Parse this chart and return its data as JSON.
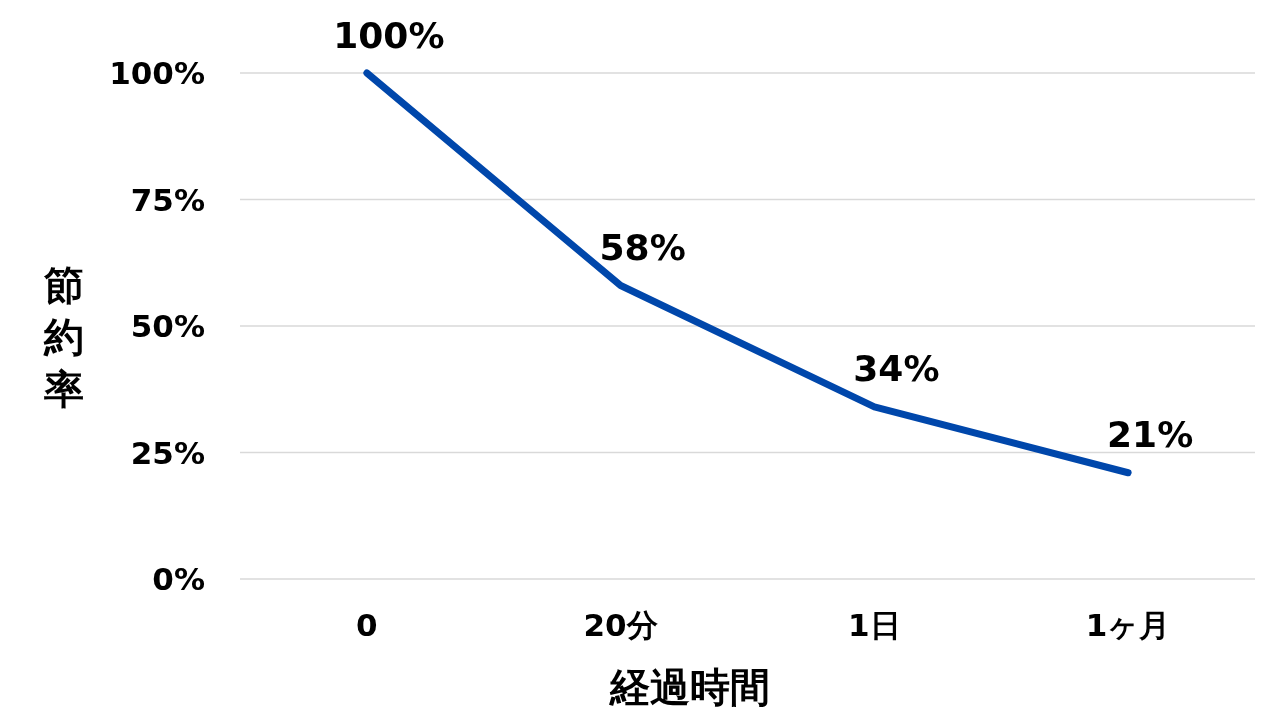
{
  "chart_data": {
    "type": "line",
    "xlabel": "経過時間",
    "ylabel": "節約率",
    "categories": [
      "0",
      "20分",
      "1日",
      "1ヶ月"
    ],
    "series": [
      {
        "color": "#0047ab",
        "values": [
          100,
          58,
          34,
          21
        ],
        "value_labels": [
          "100%",
          "58%",
          "34%",
          "21%"
        ]
      }
    ],
    "ylim": [
      0,
      100
    ],
    "yticks": [
      {
        "value": 0,
        "label": "0%"
      },
      {
        "value": 25,
        "label": "25%"
      },
      {
        "value": 50,
        "label": "50%"
      },
      {
        "value": 75,
        "label": "75%"
      },
      {
        "value": 100,
        "label": "100%"
      }
    ],
    "grid": "y"
  }
}
